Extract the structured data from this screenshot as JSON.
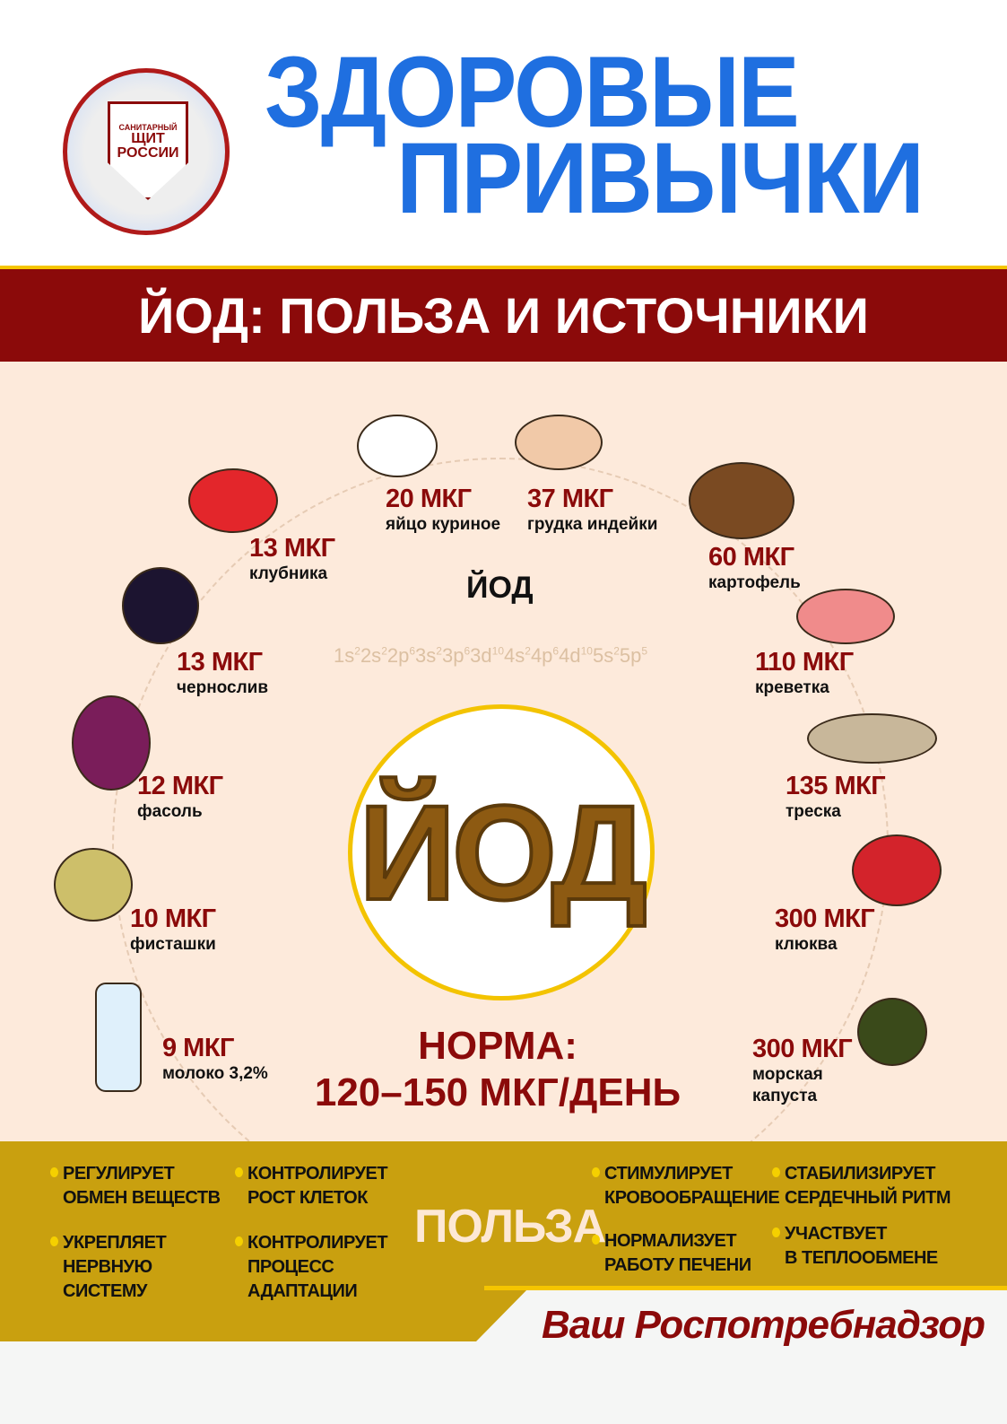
{
  "logo": {
    "line1": "САНИТАРНЫЙ",
    "line2": "ЩИТ",
    "line3": "РОССИИ"
  },
  "title": {
    "line1": "ЗДОРОВЫЕ",
    "line2": "ПРИВЫЧКИ"
  },
  "subtitle": "ЙОД: ПОЛЬЗА И ИСТОЧНИКИ",
  "element": {
    "label": "ЙОД",
    "config_parts": [
      [
        "1s",
        "2"
      ],
      [
        "2s",
        "2"
      ],
      [
        "2p",
        "6"
      ],
      [
        "3s",
        "2"
      ],
      [
        "3p",
        "6"
      ],
      [
        "3d",
        "10"
      ],
      [
        "4s",
        "2"
      ],
      [
        "4p",
        "6"
      ],
      [
        "4d",
        "10"
      ],
      [
        "5s",
        "2"
      ],
      [
        "5p",
        "5"
      ]
    ],
    "big": "ЙОД"
  },
  "norma": {
    "line1": "НОРМА:",
    "line2": "120–150 МКГ/ДЕНЬ"
  },
  "foods": [
    {
      "icon": "egg-icon",
      "amount": "20 МКГ",
      "name": "яйцо куриное"
    },
    {
      "icon": "turkey-breast-icon",
      "amount": "37 МКГ",
      "name": "грудка индейки"
    },
    {
      "icon": "strawberry-icon",
      "amount": "13 МКГ",
      "name": "клубника"
    },
    {
      "icon": "potato-icon",
      "amount": "60 МКГ",
      "name": "картофель"
    },
    {
      "icon": "prunes-icon",
      "amount": "13 МКГ",
      "name": "чернослив"
    },
    {
      "icon": "shrimp-icon",
      "amount": "110 МКГ",
      "name": "креветка"
    },
    {
      "icon": "beans-icon",
      "amount": "12 МКГ",
      "name": "фасоль"
    },
    {
      "icon": "cod-icon",
      "amount": "135 МКГ",
      "name": "треска"
    },
    {
      "icon": "pistachio-icon",
      "amount": "10 МКГ",
      "name": "фисташки"
    },
    {
      "icon": "cranberry-icon",
      "amount": "300 МКГ",
      "name": "клюква"
    },
    {
      "icon": "milk-bottle-icon",
      "amount": "9 МКГ",
      "name": "молоко 3,2%"
    },
    {
      "icon": "seaweed-icon",
      "amount": "300 МКГ",
      "name": "морская\nкапуста"
    }
  ],
  "benefits": {
    "title": "ПОЛЬЗА",
    "items": [
      "РЕГУЛИРУЕТ\nОБМЕН ВЕЩЕСТВ",
      "УКРЕПЛЯЕТ\nНЕРВНУЮ\nСИСТЕМУ",
      "КОНТРОЛИРУЕТ\nРОСТ КЛЕТОК",
      "КОНТРОЛИРУЕТ\nПРОЦЕСС\nАДАПТАЦИИ",
      "СТИМУЛИРУЕТ\nКРОВООБРАЩЕНИЕ",
      "НОРМАЛИЗУЕТ\nРАБОТУ ПЕЧЕНИ",
      "СТАБИЛИЗИРУЕТ\nСЕРДЕЧНЫЙ РИТМ",
      "УЧАСТВУЕТ\nВ ТЕПЛООБМЕНЕ"
    ]
  },
  "signature": "Ваш Роспотребнадзор",
  "colors": {
    "title_blue": "#1f6fe0",
    "dark_red": "#8b0a0a",
    "gold": "#c9a00f",
    "peach": "#fdeadb",
    "yellow": "#f5c500"
  }
}
